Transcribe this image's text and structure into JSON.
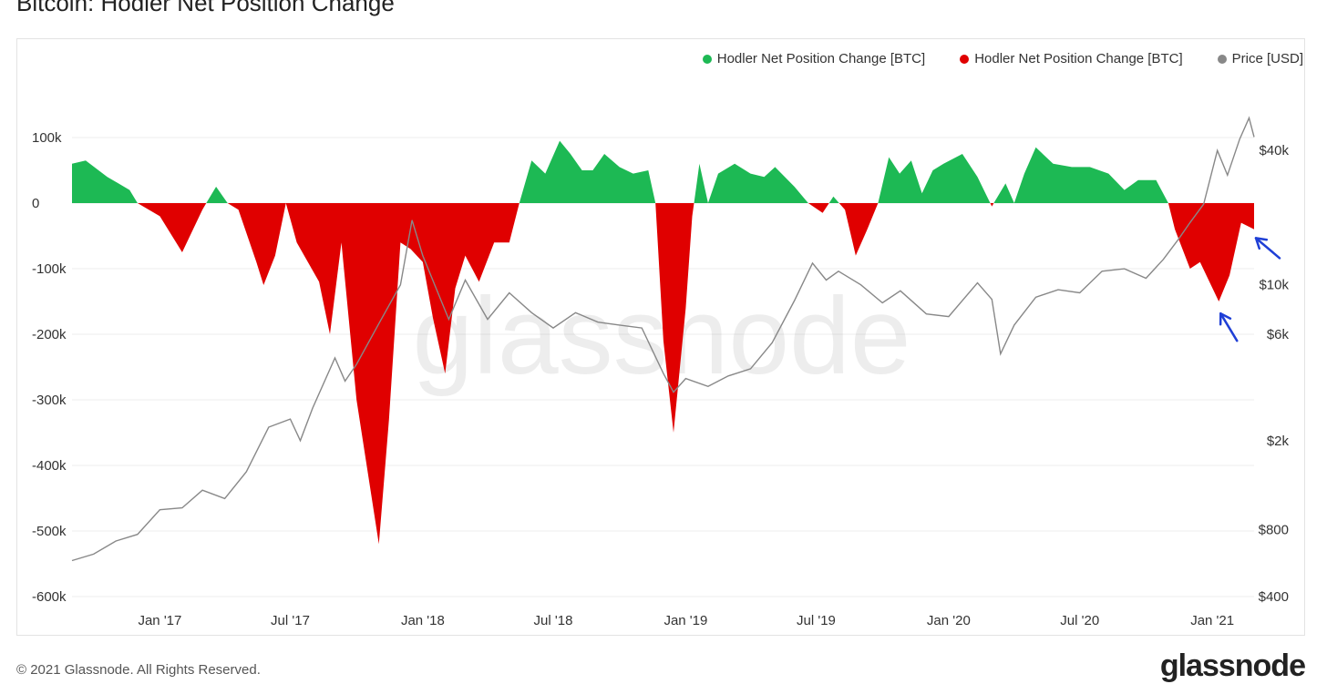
{
  "page": {
    "title": "Bitcoin: Hodler Net Position Change",
    "copyright": "© 2021 Glassnode. All Rights Reserved.",
    "brand": "glassnode",
    "watermark": "glassnode"
  },
  "legend": [
    {
      "label": "Hodler Net Position Change [BTC]",
      "color": "#1db954"
    },
    {
      "label": "Hodler Net Position Change [BTC]",
      "color": "#e00000"
    },
    {
      "label": "Price [USD]",
      "color": "#888888"
    }
  ],
  "chart_data": {
    "type": "area",
    "x_range": [
      "2016-09-01",
      "2021-02-28"
    ],
    "x_ticks": [
      {
        "date": "2017-01-01",
        "label": "Jan '17"
      },
      {
        "date": "2017-07-01",
        "label": "Jul '17"
      },
      {
        "date": "2018-01-01",
        "label": "Jan '18"
      },
      {
        "date": "2018-07-01",
        "label": "Jul '18"
      },
      {
        "date": "2019-01-01",
        "label": "Jan '19"
      },
      {
        "date": "2019-07-01",
        "label": "Jul '19"
      },
      {
        "date": "2020-01-01",
        "label": "Jan '20"
      },
      {
        "date": "2020-07-01",
        "label": "Jul '20"
      },
      {
        "date": "2021-01-01",
        "label": "Jan '21"
      }
    ],
    "y_left": {
      "range": [
        -600000,
        200000
      ],
      "ticks": [
        {
          "value": 100000,
          "label": "100k"
        },
        {
          "value": 0,
          "label": "0"
        },
        {
          "value": -100000,
          "label": "-100k"
        },
        {
          "value": -200000,
          "label": "-200k"
        },
        {
          "value": -300000,
          "label": "-300k"
        },
        {
          "value": -400000,
          "label": "-400k"
        },
        {
          "value": -500000,
          "label": "-500k"
        },
        {
          "value": -600000,
          "label": "-600k"
        }
      ]
    },
    "y_right": {
      "scale": "log",
      "range": [
        400,
        90000
      ],
      "ticks": [
        {
          "value": 40000,
          "label": "$40k"
        },
        {
          "value": 10000,
          "label": "$10k"
        },
        {
          "value": 6000,
          "label": "$6k"
        },
        {
          "value": 2000,
          "label": "$2k"
        },
        {
          "value": 800,
          "label": "$800"
        },
        {
          "value": 400,
          "label": "$400"
        }
      ]
    },
    "grid": true,
    "legend_position": "top-right",
    "colors": {
      "positive": "#1db954",
      "negative": "#e00000",
      "price": "#888888",
      "arrow": "#1f3fd6"
    },
    "net_position_change": [
      {
        "date": "2016-09-01",
        "value": 60000
      },
      {
        "date": "2016-09-20",
        "value": 65000
      },
      {
        "date": "2016-10-20",
        "value": 40000
      },
      {
        "date": "2016-11-20",
        "value": 20000
      },
      {
        "date": "2016-12-01",
        "value": 0
      },
      {
        "date": "2017-01-01",
        "value": -20000
      },
      {
        "date": "2017-02-01",
        "value": -75000
      },
      {
        "date": "2017-03-01",
        "value": -10000
      },
      {
        "date": "2017-03-20",
        "value": 25000
      },
      {
        "date": "2017-04-05",
        "value": 0
      },
      {
        "date": "2017-04-20",
        "value": -10000
      },
      {
        "date": "2017-05-15",
        "value": -90000
      },
      {
        "date": "2017-05-25",
        "value": -125000
      },
      {
        "date": "2017-06-10",
        "value": -80000
      },
      {
        "date": "2017-06-25",
        "value": 0
      },
      {
        "date": "2017-07-10",
        "value": -60000
      },
      {
        "date": "2017-08-10",
        "value": -120000
      },
      {
        "date": "2017-08-25",
        "value": -200000
      },
      {
        "date": "2017-09-10",
        "value": -60000
      },
      {
        "date": "2017-10-01",
        "value": -300000
      },
      {
        "date": "2017-11-01",
        "value": -520000
      },
      {
        "date": "2017-11-15",
        "value": -330000
      },
      {
        "date": "2017-12-01",
        "value": -60000
      },
      {
        "date": "2017-12-15",
        "value": -70000
      },
      {
        "date": "2018-01-01",
        "value": -90000
      },
      {
        "date": "2018-01-15",
        "value": -175000
      },
      {
        "date": "2018-02-01",
        "value": -260000
      },
      {
        "date": "2018-02-15",
        "value": -130000
      },
      {
        "date": "2018-03-01",
        "value": -80000
      },
      {
        "date": "2018-03-20",
        "value": -120000
      },
      {
        "date": "2018-04-10",
        "value": -60000
      },
      {
        "date": "2018-05-01",
        "value": -60000
      },
      {
        "date": "2018-05-15",
        "value": 0
      },
      {
        "date": "2018-06-01",
        "value": 65000
      },
      {
        "date": "2018-06-20",
        "value": 45000
      },
      {
        "date": "2018-07-10",
        "value": 95000
      },
      {
        "date": "2018-07-25",
        "value": 75000
      },
      {
        "date": "2018-08-10",
        "value": 50000
      },
      {
        "date": "2018-08-25",
        "value": 50000
      },
      {
        "date": "2018-09-10",
        "value": 75000
      },
      {
        "date": "2018-10-01",
        "value": 55000
      },
      {
        "date": "2018-10-20",
        "value": 45000
      },
      {
        "date": "2018-11-10",
        "value": 50000
      },
      {
        "date": "2018-11-20",
        "value": 0
      },
      {
        "date": "2018-12-01",
        "value": -210000
      },
      {
        "date": "2018-12-15",
        "value": -350000
      },
      {
        "date": "2019-01-01",
        "value": -160000
      },
      {
        "date": "2019-01-10",
        "value": -20000
      },
      {
        "date": "2019-01-20",
        "value": 60000
      },
      {
        "date": "2019-02-01",
        "value": 0
      },
      {
        "date": "2019-02-15",
        "value": 45000
      },
      {
        "date": "2019-03-10",
        "value": 60000
      },
      {
        "date": "2019-04-01",
        "value": 45000
      },
      {
        "date": "2019-04-20",
        "value": 40000
      },
      {
        "date": "2019-05-05",
        "value": 55000
      },
      {
        "date": "2019-06-01",
        "value": 25000
      },
      {
        "date": "2019-06-20",
        "value": 0
      },
      {
        "date": "2019-07-10",
        "value": -15000
      },
      {
        "date": "2019-07-25",
        "value": 10000
      },
      {
        "date": "2019-08-10",
        "value": -10000
      },
      {
        "date": "2019-08-25",
        "value": -80000
      },
      {
        "date": "2019-09-10",
        "value": -40000
      },
      {
        "date": "2019-09-25",
        "value": 0
      },
      {
        "date": "2019-10-10",
        "value": 70000
      },
      {
        "date": "2019-10-25",
        "value": 45000
      },
      {
        "date": "2019-11-10",
        "value": 65000
      },
      {
        "date": "2019-11-25",
        "value": 15000
      },
      {
        "date": "2019-12-10",
        "value": 50000
      },
      {
        "date": "2019-12-25",
        "value": 60000
      },
      {
        "date": "2020-01-20",
        "value": 75000
      },
      {
        "date": "2020-02-10",
        "value": 40000
      },
      {
        "date": "2020-03-01",
        "value": -5000
      },
      {
        "date": "2020-03-20",
        "value": 30000
      },
      {
        "date": "2020-04-01",
        "value": 0
      },
      {
        "date": "2020-04-15",
        "value": 45000
      },
      {
        "date": "2020-05-01",
        "value": 85000
      },
      {
        "date": "2020-05-25",
        "value": 60000
      },
      {
        "date": "2020-06-20",
        "value": 55000
      },
      {
        "date": "2020-07-15",
        "value": 55000
      },
      {
        "date": "2020-08-10",
        "value": 45000
      },
      {
        "date": "2020-09-01",
        "value": 20000
      },
      {
        "date": "2020-09-20",
        "value": 35000
      },
      {
        "date": "2020-10-15",
        "value": 35000
      },
      {
        "date": "2020-11-01",
        "value": 0
      },
      {
        "date": "2020-11-10",
        "value": -40000
      },
      {
        "date": "2020-12-01",
        "value": -100000
      },
      {
        "date": "2020-12-15",
        "value": -90000
      },
      {
        "date": "2021-01-10",
        "value": -150000
      },
      {
        "date": "2021-01-25",
        "value": -110000
      },
      {
        "date": "2021-02-10",
        "value": -30000
      },
      {
        "date": "2021-02-28",
        "value": -40000
      }
    ],
    "price": [
      {
        "date": "2016-09-01",
        "value": 580
      },
      {
        "date": "2016-10-01",
        "value": 620
      },
      {
        "date": "2016-11-01",
        "value": 710
      },
      {
        "date": "2016-12-01",
        "value": 760
      },
      {
        "date": "2017-01-01",
        "value": 980
      },
      {
        "date": "2017-02-01",
        "value": 1000
      },
      {
        "date": "2017-03-01",
        "value": 1200
      },
      {
        "date": "2017-04-01",
        "value": 1100
      },
      {
        "date": "2017-05-01",
        "value": 1450
      },
      {
        "date": "2017-06-01",
        "value": 2300
      },
      {
        "date": "2017-07-01",
        "value": 2500
      },
      {
        "date": "2017-07-15",
        "value": 2000
      },
      {
        "date": "2017-08-01",
        "value": 2800
      },
      {
        "date": "2017-09-01",
        "value": 4700
      },
      {
        "date": "2017-09-15",
        "value": 3700
      },
      {
        "date": "2017-10-01",
        "value": 4400
      },
      {
        "date": "2017-11-01",
        "value": 6700
      },
      {
        "date": "2017-12-01",
        "value": 10000
      },
      {
        "date": "2017-12-17",
        "value": 19500
      },
      {
        "date": "2018-01-01",
        "value": 13500
      },
      {
        "date": "2018-02-06",
        "value": 7000
      },
      {
        "date": "2018-03-01",
        "value": 10500
      },
      {
        "date": "2018-04-01",
        "value": 7000
      },
      {
        "date": "2018-05-01",
        "value": 9200
      },
      {
        "date": "2018-06-01",
        "value": 7500
      },
      {
        "date": "2018-07-01",
        "value": 6400
      },
      {
        "date": "2018-08-01",
        "value": 7500
      },
      {
        "date": "2018-09-01",
        "value": 6800
      },
      {
        "date": "2018-10-01",
        "value": 6600
      },
      {
        "date": "2018-11-01",
        "value": 6400
      },
      {
        "date": "2018-12-01",
        "value": 4000
      },
      {
        "date": "2018-12-15",
        "value": 3300
      },
      {
        "date": "2019-01-01",
        "value": 3800
      },
      {
        "date": "2019-02-01",
        "value": 3500
      },
      {
        "date": "2019-03-01",
        "value": 3900
      },
      {
        "date": "2019-04-01",
        "value": 4200
      },
      {
        "date": "2019-05-01",
        "value": 5500
      },
      {
        "date": "2019-06-01",
        "value": 8500
      },
      {
        "date": "2019-06-26",
        "value": 12500
      },
      {
        "date": "2019-07-15",
        "value": 10500
      },
      {
        "date": "2019-08-01",
        "value": 11500
      },
      {
        "date": "2019-09-01",
        "value": 10000
      },
      {
        "date": "2019-10-01",
        "value": 8300
      },
      {
        "date": "2019-10-26",
        "value": 9400
      },
      {
        "date": "2019-12-01",
        "value": 7400
      },
      {
        "date": "2020-01-01",
        "value": 7200
      },
      {
        "date": "2020-02-10",
        "value": 10200
      },
      {
        "date": "2020-03-01",
        "value": 8600
      },
      {
        "date": "2020-03-13",
        "value": 4900
      },
      {
        "date": "2020-04-01",
        "value": 6600
      },
      {
        "date": "2020-05-01",
        "value": 8800
      },
      {
        "date": "2020-06-01",
        "value": 9500
      },
      {
        "date": "2020-07-01",
        "value": 9200
      },
      {
        "date": "2020-08-01",
        "value": 11500
      },
      {
        "date": "2020-09-01",
        "value": 11800
      },
      {
        "date": "2020-10-01",
        "value": 10700
      },
      {
        "date": "2020-10-25",
        "value": 13000
      },
      {
        "date": "2020-11-15",
        "value": 16000
      },
      {
        "date": "2020-12-01",
        "value": 19000
      },
      {
        "date": "2020-12-20",
        "value": 23000
      },
      {
        "date": "2021-01-08",
        "value": 40000
      },
      {
        "date": "2021-01-22",
        "value": 31000
      },
      {
        "date": "2021-02-08",
        "value": 45000
      },
      {
        "date": "2021-02-21",
        "value": 56000
      },
      {
        "date": "2021-02-28",
        "value": 46000
      }
    ],
    "annotations": [
      {
        "type": "arrow",
        "target_date": "2021-01-10",
        "target_value": -160000
      },
      {
        "type": "arrow",
        "target_date": "2021-02-28",
        "target_value": -45000
      }
    ]
  }
}
